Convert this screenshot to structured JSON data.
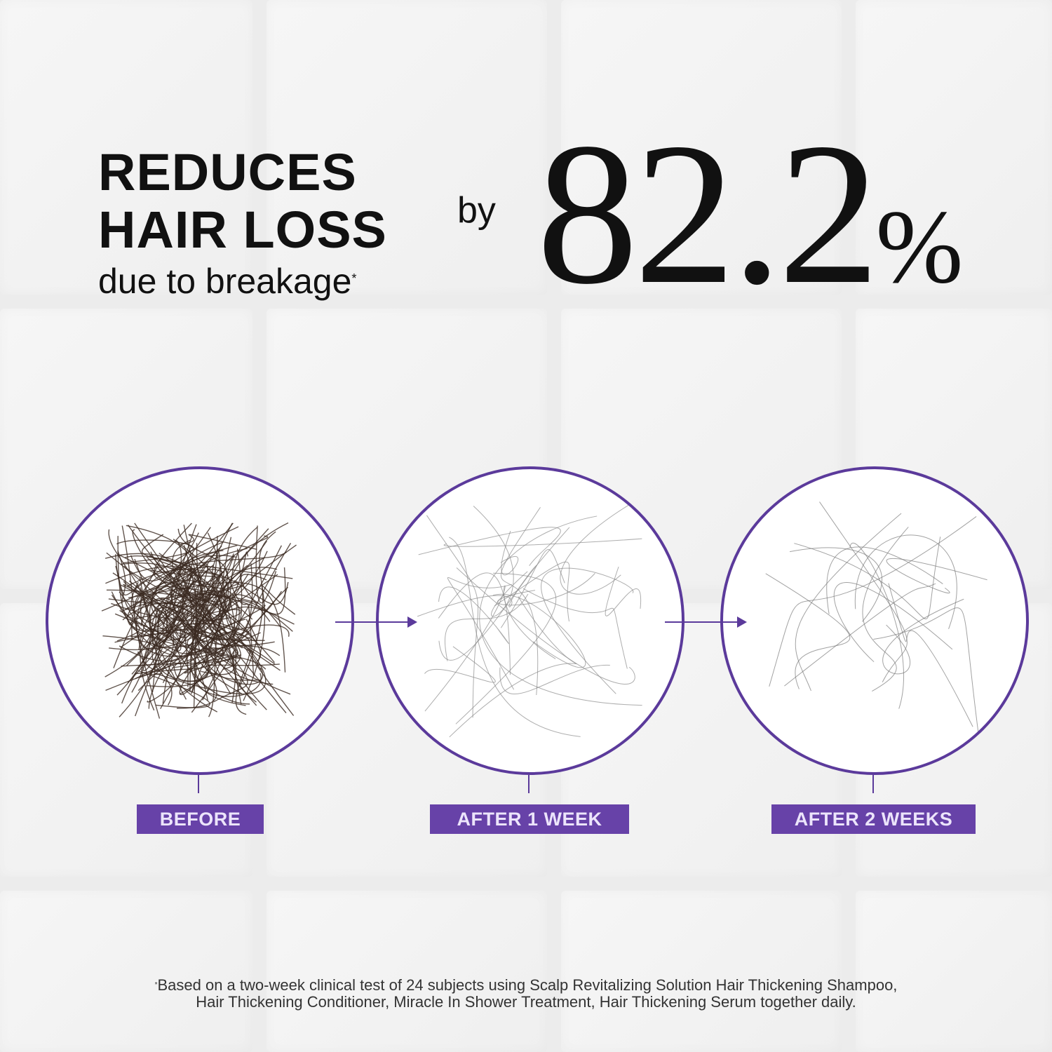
{
  "headline": {
    "line1": "REDUCES",
    "line2": "HAIR LOSS",
    "line3": "due to breakage",
    "asterisk": "*",
    "connector": "by",
    "stat_value": "82.2",
    "stat_unit": "%"
  },
  "stages": [
    {
      "label": "BEFORE",
      "hair_amount": "heavy",
      "hair_color": "#3b2a22"
    },
    {
      "label": "AFTER 1 WEEK",
      "hair_amount": "moderate",
      "hair_color": "#8a8a8a"
    },
    {
      "label": "AFTER 2 WEEKS",
      "hair_amount": "light",
      "hair_color": "#7a7a7a"
    }
  ],
  "colors": {
    "accent": "#6742a8",
    "label_text": "#ece4fb"
  },
  "footnote": {
    "asterisk": "*",
    "line1": "Based on a two-week clinical test of 24 subjects using Scalp Revitalizing Solution Hair Thickening Shampoo,",
    "line2": "Hair Thickening Conditioner, Miracle In Shower Treatment, Hair Thickening Serum together daily."
  }
}
